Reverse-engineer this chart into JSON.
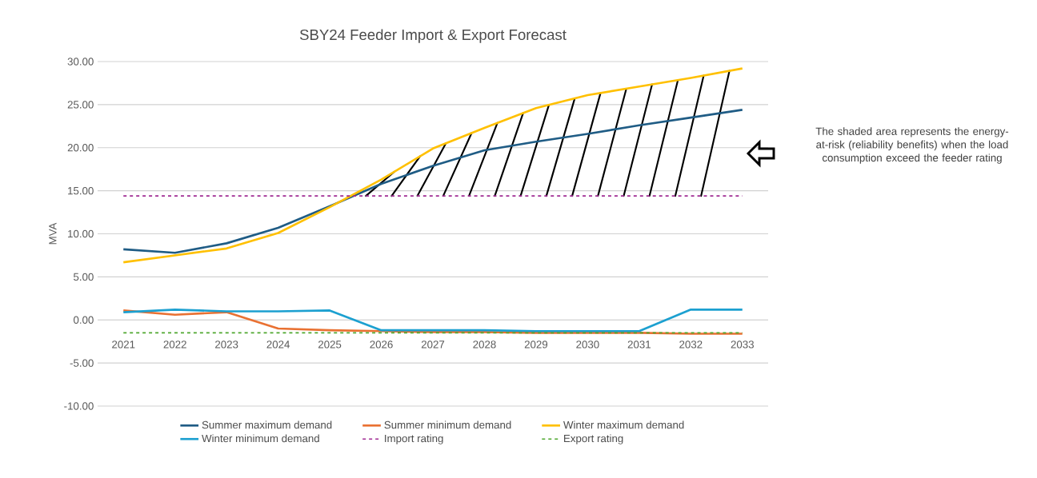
{
  "chart_data": {
    "type": "line",
    "title": "SBY24 Feeder Import & Export Forecast",
    "ylabel": "MVA",
    "categories": [
      "2021",
      "2022",
      "2023",
      "2024",
      "2025",
      "2026",
      "2027",
      "2028",
      "2029",
      "2030",
      "2031",
      "2032",
      "2033"
    ],
    "series": [
      {
        "name": "Summer maximum demand",
        "color": "#1f5c85",
        "values": [
          8.2,
          7.8,
          8.9,
          10.7,
          13.2,
          15.8,
          17.9,
          19.7,
          20.7,
          21.6,
          22.6,
          23.5,
          24.4
        ]
      },
      {
        "name": "Summer minimum demand",
        "color": "#e97132",
        "values": [
          1.1,
          0.6,
          0.9,
          -1.0,
          -1.2,
          -1.3,
          -1.4,
          -1.4,
          -1.5,
          -1.5,
          -1.5,
          -1.6,
          -1.6
        ]
      },
      {
        "name": "Winter maximum demand",
        "color": "#ffc000",
        "values": [
          6.7,
          7.5,
          8.3,
          10.1,
          13.1,
          16.3,
          19.9,
          22.3,
          24.6,
          26.1,
          27.1,
          28.1,
          29.2
        ]
      },
      {
        "name": "Winter minimum demand",
        "color": "#1ca0d0",
        "values": [
          0.9,
          1.2,
          1.0,
          1.0,
          1.1,
          -1.2,
          -1.2,
          -1.2,
          -1.3,
          -1.3,
          -1.3,
          1.2,
          1.2
        ]
      }
    ],
    "ref_lines": [
      {
        "axis": "y",
        "value": 14.4,
        "label": "Import rating",
        "color": "#a02b93",
        "line_style": "dashed"
      },
      {
        "axis": "y",
        "value": -1.5,
        "label": "Export rating",
        "color": "#4ea72e",
        "line_style": "dashed"
      }
    ],
    "ylim": [
      -10,
      30
    ],
    "yticks": [
      {
        "value": -10,
        "label": "-10.00"
      },
      {
        "value": -5,
        "label": "-5.00"
      },
      {
        "value": 0,
        "label": "0.00"
      },
      {
        "value": 5,
        "label": "5.00"
      },
      {
        "value": 10,
        "label": "10.00"
      },
      {
        "value": 15,
        "label": "15.00"
      },
      {
        "value": 20,
        "label": "20.00"
      },
      {
        "value": 25,
        "label": "25.00"
      },
      {
        "value": 30,
        "label": "30.00"
      }
    ],
    "grid": "y",
    "legend": "bottom",
    "marker": "none",
    "line_style": "solid",
    "annotations": [
      "The shaded area represents the energy-at-risk (reliability benefits) when the load consumption exceed the feeder rating"
    ]
  }
}
